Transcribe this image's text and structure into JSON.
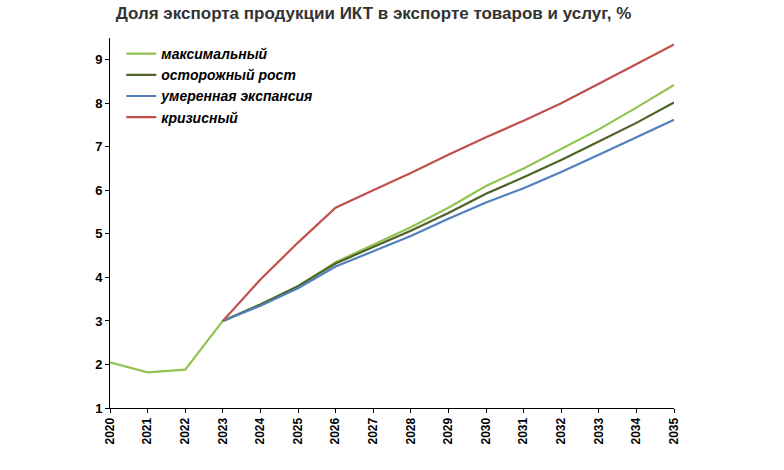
{
  "chart_data": {
    "type": "line",
    "title": "Доля экспорта продукции ИКТ в экспорте товаров и услуг, %",
    "categories": [
      "2020",
      "2021",
      "2022",
      "2023",
      "2024",
      "2025",
      "2026",
      "2027",
      "2028",
      "2029",
      "2030",
      "2031",
      "2032",
      "2033",
      "2034",
      "2035"
    ],
    "series": [
      {
        "name": "максимальный",
        "color": "#92c353",
        "values": [
          2.05,
          1.82,
          1.88,
          3.0,
          3.38,
          3.8,
          4.35,
          4.75,
          5.15,
          5.6,
          6.1,
          6.5,
          6.95,
          7.4,
          7.9,
          8.42
        ]
      },
      {
        "name": "осторожный рост",
        "color": "#4f6228",
        "values": [
          null,
          null,
          null,
          3.0,
          3.38,
          3.8,
          4.32,
          4.7,
          5.07,
          5.48,
          5.92,
          6.3,
          6.7,
          7.12,
          7.55,
          8.02
        ]
      },
      {
        "name": "умеренная экспансия",
        "color": "#4f81bd",
        "values": [
          null,
          null,
          null,
          3.0,
          3.35,
          3.75,
          4.25,
          4.6,
          4.95,
          5.35,
          5.72,
          6.05,
          6.42,
          6.82,
          7.22,
          7.62
        ]
      },
      {
        "name": "кризисный",
        "color": "#c0504d",
        "values": [
          null,
          null,
          null,
          3.0,
          3.95,
          4.8,
          5.6,
          6.0,
          6.4,
          6.82,
          7.22,
          7.6,
          8.0,
          8.45,
          8.9,
          9.35
        ]
      }
    ],
    "ylim": [
      1,
      9.5
    ],
    "yticks": [
      1,
      2,
      3,
      4,
      5,
      6,
      7,
      8,
      9
    ],
    "grid": false,
    "legend": "upper left"
  }
}
